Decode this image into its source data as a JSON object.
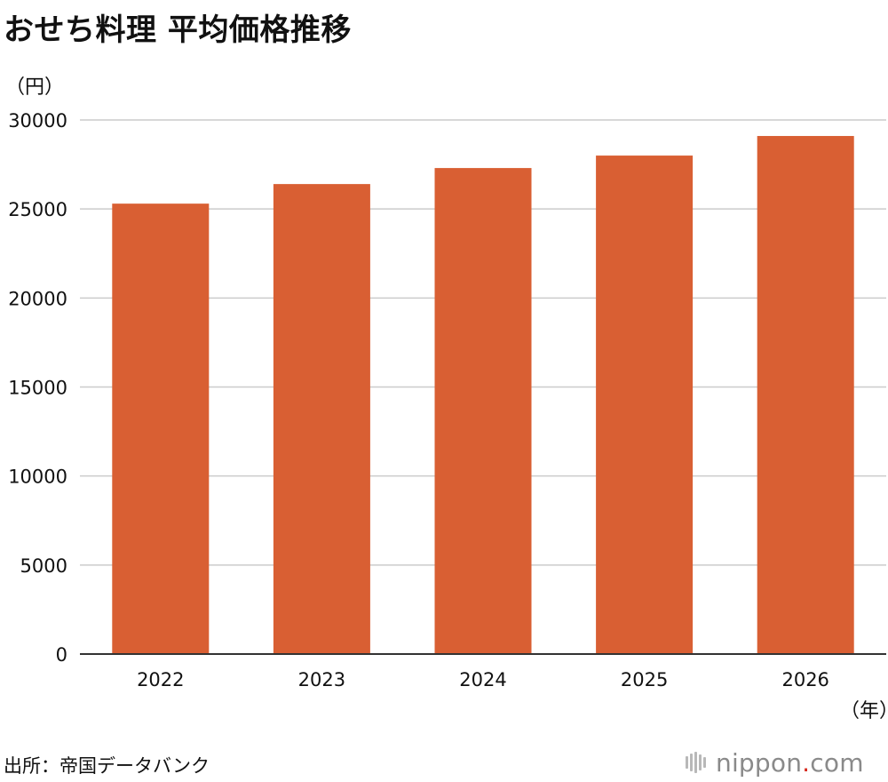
{
  "title": "おせち料理 平均価格推移",
  "y_unit": "（円）",
  "x_unit": "（年）",
  "source": "出所：帝国データバンク",
  "brand": {
    "name_before_dot": "nippon",
    "dot": ".",
    "name_after_dot": "com"
  },
  "colors": {
    "bar": "#d95f33",
    "grid": "#cccccc",
    "axis": "#333333",
    "brand_dot": "#d62a1e",
    "brand_text": "#8a8a8a"
  },
  "chart_data": {
    "type": "bar",
    "title": "おせち料理 平均価格推移",
    "xlabel": "（年）",
    "ylabel": "（円）",
    "categories": [
      "2022",
      "2023",
      "2024",
      "2025",
      "2026"
    ],
    "values": [
      25300,
      26400,
      27300,
      28000,
      29100
    ],
    "ylim": [
      0,
      30000
    ],
    "yticks": [
      0,
      5000,
      10000,
      15000,
      20000,
      25000,
      30000
    ],
    "grid": true,
    "legend": "none"
  }
}
